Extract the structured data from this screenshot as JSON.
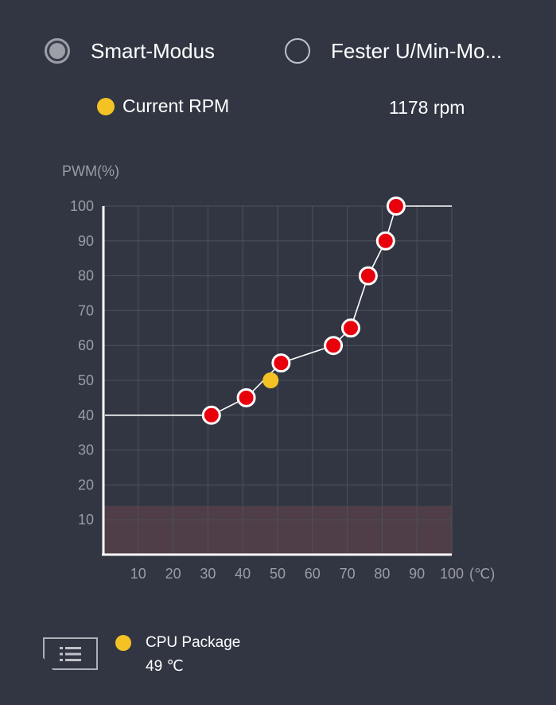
{
  "mode": {
    "smart_label": "Smart-Modus",
    "fixed_label": "Fester U/Min-Mo...",
    "selected": "smart"
  },
  "legend": {
    "current_rpm_label": "Current RPM",
    "current_rpm_value": "1178 rpm",
    "dot_color": "#f4c224"
  },
  "chart_data": {
    "type": "line",
    "title": "",
    "ylabel": "PWM(%)",
    "xlabel": "(℃)",
    "xlim": [
      0,
      100
    ],
    "ylim": [
      0,
      100
    ],
    "x_ticks": [
      10,
      20,
      30,
      40,
      50,
      60,
      70,
      80,
      90,
      100
    ],
    "y_ticks": [
      10,
      20,
      30,
      40,
      50,
      60,
      70,
      80,
      90,
      100
    ],
    "grid": true,
    "series": [
      {
        "points": [
          [
            31,
            40
          ],
          [
            41,
            45
          ],
          [
            51,
            55
          ],
          [
            66,
            60
          ],
          [
            71,
            65
          ],
          [
            76,
            80
          ],
          [
            81,
            90
          ],
          [
            84,
            100
          ]
        ],
        "extend_left_to_y": 40,
        "extend_right_to_y": 100,
        "point_color": "#e8000d",
        "line_color": "#ffffff"
      }
    ],
    "current_point": {
      "x": 48,
      "y": 50,
      "color": "#f4c224"
    },
    "danger_zone": {
      "y_max": 14,
      "color": "#4f3d47"
    }
  },
  "sensor": {
    "name": "CPU Package",
    "temperature": "49 ℃",
    "button_icon": "list-icon"
  }
}
